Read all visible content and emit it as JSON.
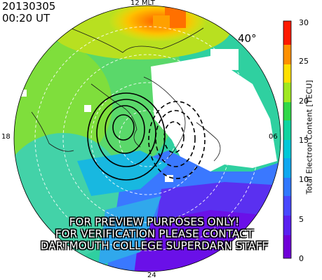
{
  "header": {
    "date": "20130305",
    "time": "00:20 UT"
  },
  "latitude_label": "40°",
  "mlt_labels": {
    "top": "12 MLT",
    "bottom": "24",
    "left": "18",
    "right": "06"
  },
  "colorbar": {
    "title": "Total Electron Content [TECU]",
    "min": 0,
    "max": 30,
    "ticks": [
      "0",
      "5",
      "10",
      "15",
      "20",
      "25",
      "30"
    ],
    "colormap": "rainbow (purple → red)"
  },
  "watermark": {
    "line1": "FOR PREVIEW PURPOSES ONLY!",
    "line2": "FOR VERIFICATION PLEASE CONTACT",
    "line3": "DARTMOUTH COLLEGE SUPERDARN STAFF"
  },
  "colors": {
    "tec_low": "#5a00e0",
    "tec_mid": "#00c8d8",
    "tec_high": "#ff2a00",
    "contour": "#000000",
    "grid": "#ffffff"
  }
}
